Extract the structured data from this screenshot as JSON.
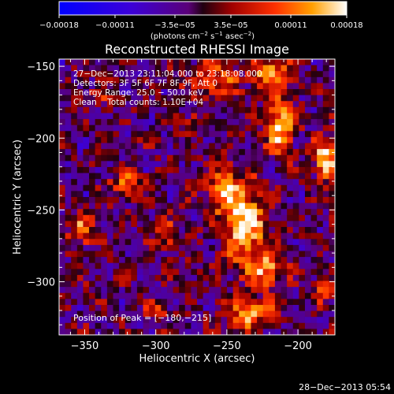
{
  "chart_data": {
    "type": "heatmap",
    "title": "Reconstructed RHESSI Image",
    "xlabel": "Heliocentric X (arcsec)",
    "ylabel": "Heliocentric Y (arcsec)",
    "xlim": [
      -368,
      -174
    ],
    "ylim": [
      -337,
      -145
    ],
    "x_ticks": [
      -350,
      -300,
      -250,
      -200
    ],
    "x_tick_labels": [
      "−350",
      "−300",
      "−250",
      "−200"
    ],
    "y_ticks": [
      -300,
      -250,
      -200,
      -150
    ],
    "y_tick_labels": [
      "−300",
      "−250",
      "−200",
      "−150"
    ],
    "colorbar": {
      "min": -0.00018,
      "max": 0.00018,
      "ticks": [
        -0.00018,
        -0.00011,
        -3.5e-05,
        3.5e-05,
        0.00011,
        0.00018
      ],
      "tick_labels": [
        "−0.00018",
        "−0.00011",
        "−3.5e−05",
        "3.5e−05",
        "0.00011",
        "0.00018"
      ],
      "unit_text": "(photons cm",
      "unit_sup1": "−2",
      "unit_mid": " s",
      "unit_sup2": "−1",
      "unit_mid2": " asec",
      "unit_sup3": "−2",
      "unit_end": ")"
    },
    "annotations": {
      "time_range": "27−Dec−2013 23:11:04.000 to 23:18:08.000",
      "detectors": "Detectors: 3F 5F 6F 7F 8F 9F, Att 0",
      "energy_range": "Energy Range: 25.0 − 50.0 keV",
      "clean_counts": "Clean    Total counts: 1.10E+04",
      "peak_position": "Position of Peak = [−180,−215]"
    },
    "peak": {
      "x": -180,
      "y": -215
    },
    "blobs": [
      {
        "x": -237,
        "y": -260,
        "sx": 10,
        "sy": 18,
        "amp": 0.00018
      },
      {
        "x": -252,
        "y": -235,
        "sx": 8,
        "sy": 12,
        "amp": 0.00014
      },
      {
        "x": -222,
        "y": -292,
        "sx": 10,
        "sy": 9,
        "amp": 0.00013
      },
      {
        "x": -213,
        "y": -192,
        "sx": 7,
        "sy": 14,
        "amp": 0.00016
      },
      {
        "x": -180,
        "y": -215,
        "sx": 6,
        "sy": 10,
        "amp": 0.00018
      },
      {
        "x": -218,
        "y": -155,
        "sx": 9,
        "sy": 8,
        "amp": 0.00015
      },
      {
        "x": -258,
        "y": -160,
        "sx": 12,
        "sy": 9,
        "amp": 0.00011
      },
      {
        "x": -320,
        "y": -232,
        "sx": 9,
        "sy": 6,
        "amp": 0.00011
      },
      {
        "x": -352,
        "y": -265,
        "sx": 7,
        "sy": 7,
        "amp": 0.00012
      },
      {
        "x": -292,
        "y": -268,
        "sx": 6,
        "sy": 8,
        "amp": 8e-05
      },
      {
        "x": -300,
        "y": -320,
        "sx": 5,
        "sy": 5,
        "amp": 9e-05
      },
      {
        "x": -183,
        "y": -305,
        "sx": 5,
        "sy": 6,
        "amp": 0.00011
      },
      {
        "x": -275,
        "y": -190,
        "sx": 5,
        "sy": 6,
        "amp": 7e-05
      },
      {
        "x": -240,
        "y": -330,
        "sx": 7,
        "sy": 5,
        "amp": 9e-05
      },
      {
        "x": -340,
        "y": -172,
        "sx": 8,
        "sy": 5,
        "amp": 6e-05
      },
      {
        "x": -232,
        "y": -320,
        "sx": 12,
        "sy": 6,
        "amp": 0.00012
      }
    ],
    "grid": false,
    "colormap": "blue-purple-red-yellow-white"
  },
  "footer": {
    "timestamp": "28−Dec−2013 05:54"
  },
  "colors": {
    "background": "#000000",
    "text": "#ffffff"
  }
}
